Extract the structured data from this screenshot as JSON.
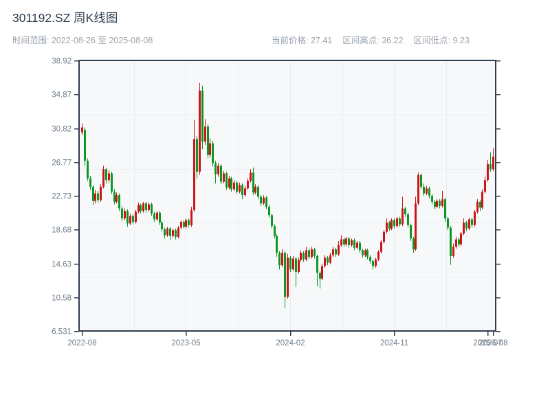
{
  "title": "301192.SZ 周K线图",
  "subtitle": "时间范围: 2022-08-26 至 2025-08-08",
  "stats": {
    "current_label": "当前价格:",
    "current_value": "27.41",
    "high_label": "区间高点:",
    "high_value": "36.22",
    "low_label": "区间低点:",
    "low_value": "9.23"
  },
  "chart_data": {
    "type": "candlestick",
    "interval": "weekly",
    "title": "301192.SZ 周K线图",
    "x_range": [
      "2022-08-26",
      "2025-08-08"
    ],
    "ylim": [
      6.531,
      38.92
    ],
    "y_ticks": [
      "38.92",
      "34.87",
      "30.82",
      "26.77",
      "22.73",
      "18.68",
      "14.63",
      "10.58",
      "6.531"
    ],
    "x_ticks": [
      {
        "label": "2022-08",
        "week": 0
      },
      {
        "label": "2023-05",
        "week": 39
      },
      {
        "label": "2024-02",
        "week": 78
      },
      {
        "label": "2024-11",
        "week": 117
      },
      {
        "label": "2025-07",
        "week": 152
      },
      {
        "label": "2025-08",
        "week": 154
      }
    ],
    "grid": true,
    "legend": "none",
    "up_color": "#cc1517",
    "down_color": "#0c9723",
    "plot_bg": "#f7f8fa",
    "grid_color": "#e9ecef",
    "spine_color": "#2e3d4f",
    "tick_label_color": "#6f7d8b",
    "ohlc": [
      [
        30.3,
        31.4,
        30.0,
        30.9
      ],
      [
        30.6,
        30.9,
        26.3,
        26.9
      ],
      [
        26.9,
        27.2,
        24.5,
        24.8
      ],
      [
        24.8,
        25.1,
        23.4,
        23.8
      ],
      [
        23.8,
        24.0,
        21.6,
        22.1
      ],
      [
        22.1,
        23.4,
        21.8,
        23.0
      ],
      [
        23.0,
        23.3,
        21.9,
        22.2
      ],
      [
        22.2,
        24.1,
        22.0,
        23.8
      ],
      [
        23.8,
        26.3,
        23.6,
        25.9
      ],
      [
        25.9,
        26.1,
        24.2,
        24.6
      ],
      [
        24.6,
        25.8,
        24.3,
        25.4
      ],
      [
        25.4,
        25.6,
        22.9,
        23.2
      ],
      [
        23.2,
        23.5,
        21.7,
        22.0
      ],
      [
        22.0,
        23.1,
        21.8,
        22.8
      ],
      [
        22.8,
        23.0,
        20.9,
        21.2
      ],
      [
        21.2,
        21.5,
        19.7,
        20.0
      ],
      [
        20.0,
        21.2,
        19.8,
        20.9
      ],
      [
        20.9,
        21.1,
        19.0,
        19.4
      ],
      [
        19.4,
        20.6,
        19.2,
        20.3
      ],
      [
        20.3,
        20.5,
        19.3,
        19.6
      ],
      [
        19.6,
        21.0,
        19.4,
        20.8
      ],
      [
        20.8,
        21.9,
        20.6,
        21.6
      ],
      [
        21.6,
        21.8,
        20.6,
        20.9
      ],
      [
        20.9,
        22.0,
        20.7,
        21.8
      ],
      [
        21.8,
        22.0,
        20.7,
        21.0
      ],
      [
        21.0,
        21.9,
        20.8,
        21.7
      ],
      [
        21.7,
        21.9,
        20.3,
        20.6
      ],
      [
        20.6,
        20.8,
        19.6,
        19.9
      ],
      [
        19.9,
        20.9,
        19.7,
        20.7
      ],
      [
        20.7,
        20.9,
        19.2,
        19.5
      ],
      [
        19.5,
        19.7,
        18.4,
        18.7
      ],
      [
        18.7,
        18.9,
        17.6,
        18.0
      ],
      [
        18.0,
        19.0,
        17.8,
        18.8
      ],
      [
        18.8,
        19.0,
        17.4,
        17.9
      ],
      [
        17.9,
        18.8,
        17.7,
        18.6
      ],
      [
        18.6,
        18.8,
        17.5,
        17.8
      ],
      [
        17.8,
        19.1,
        17.6,
        18.9
      ],
      [
        18.9,
        19.8,
        18.7,
        19.6
      ],
      [
        19.6,
        19.8,
        18.8,
        19.0
      ],
      [
        19.0,
        20.0,
        18.8,
        19.8
      ],
      [
        19.8,
        20.0,
        18.9,
        19.2
      ],
      [
        19.2,
        21.4,
        19.0,
        21.0
      ],
      [
        21.0,
        31.8,
        20.8,
        29.5
      ],
      [
        29.5,
        29.9,
        24.8,
        25.6
      ],
      [
        25.6,
        36.22,
        25.2,
        35.3
      ],
      [
        35.3,
        35.9,
        28.3,
        29.2
      ],
      [
        29.2,
        31.9,
        28.8,
        31.0
      ],
      [
        31.0,
        31.3,
        27.2,
        27.6
      ],
      [
        27.6,
        29.6,
        27.3,
        29.0
      ],
      [
        29.0,
        29.3,
        26.2,
        26.6
      ],
      [
        26.6,
        26.9,
        24.2,
        25.3
      ],
      [
        25.3,
        26.6,
        25.0,
        26.3
      ],
      [
        26.3,
        26.5,
        24.1,
        24.4
      ],
      [
        24.4,
        25.7,
        24.2,
        25.4
      ],
      [
        25.4,
        25.6,
        23.4,
        23.7
      ],
      [
        23.7,
        25.1,
        23.5,
        24.8
      ],
      [
        24.8,
        25.0,
        23.2,
        23.5
      ],
      [
        23.5,
        24.6,
        23.3,
        24.3
      ],
      [
        24.3,
        24.5,
        22.9,
        23.2
      ],
      [
        23.2,
        24.3,
        23.0,
        24.0
      ],
      [
        24.0,
        24.2,
        22.3,
        22.8
      ],
      [
        22.8,
        23.9,
        22.6,
        23.6
      ],
      [
        23.6,
        24.8,
        23.4,
        24.5
      ],
      [
        24.5,
        25.9,
        24.3,
        25.5
      ],
      [
        25.5,
        26.1,
        22.8,
        23.1
      ],
      [
        23.1,
        24.1,
        22.9,
        23.8
      ],
      [
        23.8,
        24.0,
        22.3,
        22.6
      ],
      [
        22.6,
        22.8,
        21.5,
        21.8
      ],
      [
        21.8,
        22.8,
        21.6,
        22.5
      ],
      [
        22.5,
        22.7,
        21.1,
        21.4
      ],
      [
        21.4,
        21.6,
        20.1,
        20.4
      ],
      [
        20.4,
        20.6,
        18.8,
        19.1
      ],
      [
        19.1,
        19.3,
        17.6,
        17.9
      ],
      [
        17.9,
        18.1,
        15.4,
        15.9
      ],
      [
        15.9,
        16.1,
        13.9,
        14.4
      ],
      [
        14.4,
        16.3,
        14.2,
        15.9
      ],
      [
        15.9,
        16.1,
        9.23,
        10.6
      ],
      [
        10.6,
        15.8,
        10.4,
        15.3
      ],
      [
        15.3,
        15.5,
        13.6,
        13.9
      ],
      [
        13.9,
        15.5,
        13.7,
        15.2
      ],
      [
        15.2,
        15.4,
        11.8,
        13.6
      ],
      [
        13.6,
        15.3,
        13.4,
        15.0
      ],
      [
        15.0,
        16.2,
        14.8,
        15.9
      ],
      [
        15.9,
        16.1,
        14.8,
        15.1
      ],
      [
        15.1,
        16.6,
        14.9,
        16.2
      ],
      [
        16.2,
        16.4,
        15.1,
        15.4
      ],
      [
        15.4,
        16.6,
        15.2,
        16.3
      ],
      [
        16.3,
        16.5,
        15.2,
        15.5
      ],
      [
        15.5,
        15.7,
        11.9,
        13.5
      ],
      [
        13.5,
        13.7,
        11.6,
        12.8
      ],
      [
        12.8,
        14.6,
        12.6,
        14.3
      ],
      [
        14.3,
        15.6,
        14.1,
        15.3
      ],
      [
        15.3,
        15.5,
        14.4,
        14.7
      ],
      [
        14.7,
        15.9,
        14.5,
        15.6
      ],
      [
        15.6,
        16.6,
        15.4,
        16.3
      ],
      [
        16.3,
        16.5,
        15.4,
        15.7
      ],
      [
        15.7,
        17.3,
        15.5,
        16.8
      ],
      [
        16.8,
        18.0,
        16.6,
        17.5
      ],
      [
        17.5,
        17.7,
        16.6,
        16.9
      ],
      [
        16.9,
        17.8,
        16.7,
        17.6
      ],
      [
        17.6,
        17.8,
        16.5,
        16.8
      ],
      [
        16.8,
        17.6,
        16.6,
        17.4
      ],
      [
        17.4,
        17.6,
        16.2,
        16.5
      ],
      [
        16.5,
        17.3,
        16.3,
        17.1
      ],
      [
        17.1,
        17.3,
        15.9,
        16.2
      ],
      [
        16.2,
        16.4,
        15.3,
        15.6
      ],
      [
        15.6,
        16.4,
        15.4,
        16.2
      ],
      [
        16.2,
        16.4,
        15.1,
        15.4
      ],
      [
        15.4,
        15.6,
        14.6,
        14.9
      ],
      [
        14.9,
        15.1,
        13.9,
        14.3
      ],
      [
        14.3,
        15.3,
        14.1,
        15.1
      ],
      [
        15.1,
        16.2,
        14.9,
        16.0
      ],
      [
        16.0,
        17.4,
        15.8,
        17.2
      ],
      [
        17.2,
        18.6,
        17.0,
        18.4
      ],
      [
        18.4,
        20.0,
        18.2,
        19.5
      ],
      [
        19.5,
        19.7,
        18.5,
        18.8
      ],
      [
        18.8,
        20.0,
        18.6,
        19.8
      ],
      [
        19.8,
        20.0,
        18.8,
        19.1
      ],
      [
        19.1,
        20.2,
        18.9,
        20.0
      ],
      [
        20.0,
        20.2,
        19.0,
        19.3
      ],
      [
        19.3,
        22.6,
        19.1,
        21.2
      ],
      [
        21.2,
        21.4,
        20.2,
        20.5
      ],
      [
        20.5,
        20.7,
        18.9,
        19.2
      ],
      [
        19.2,
        19.4,
        17.3,
        17.6
      ],
      [
        17.6,
        17.8,
        15.9,
        16.3
      ],
      [
        16.3,
        22.6,
        16.1,
        21.8
      ],
      [
        21.8,
        25.5,
        21.6,
        25.2
      ],
      [
        25.2,
        25.4,
        23.5,
        23.8
      ],
      [
        23.8,
        24.2,
        22.7,
        23.0
      ],
      [
        23.0,
        23.9,
        22.8,
        23.6
      ],
      [
        23.6,
        23.8,
        22.4,
        22.7
      ],
      [
        22.7,
        22.9,
        21.7,
        22.0
      ],
      [
        22.0,
        22.2,
        21.1,
        21.4
      ],
      [
        21.4,
        22.3,
        21.2,
        22.1
      ],
      [
        22.1,
        22.3,
        21.2,
        21.5
      ],
      [
        21.5,
        23.3,
        21.3,
        22.3
      ],
      [
        22.3,
        22.5,
        19.6,
        20.0
      ],
      [
        20.0,
        20.2,
        18.6,
        18.9
      ],
      [
        18.9,
        19.1,
        14.45,
        15.5
      ],
      [
        15.5,
        17.0,
        15.3,
        16.6
      ],
      [
        16.6,
        17.8,
        16.4,
        17.5
      ],
      [
        17.5,
        17.7,
        16.6,
        16.9
      ],
      [
        16.9,
        18.4,
        16.7,
        18.2
      ],
      [
        18.2,
        20.0,
        18.0,
        19.5
      ],
      [
        19.5,
        19.7,
        18.5,
        18.8
      ],
      [
        18.8,
        20.1,
        18.6,
        19.9
      ],
      [
        19.9,
        20.1,
        18.9,
        19.2
      ],
      [
        19.2,
        21.0,
        19.0,
        20.8
      ],
      [
        20.8,
        22.3,
        20.6,
        22.0
      ],
      [
        22.0,
        22.2,
        20.9,
        21.3
      ],
      [
        21.3,
        23.5,
        21.1,
        23.2
      ],
      [
        23.2,
        25.0,
        23.0,
        24.6
      ],
      [
        24.6,
        27.0,
        24.4,
        26.5
      ],
      [
        26.5,
        27.9,
        25.6,
        25.9
      ],
      [
        25.9,
        28.4,
        25.7,
        27.41
      ]
    ]
  }
}
